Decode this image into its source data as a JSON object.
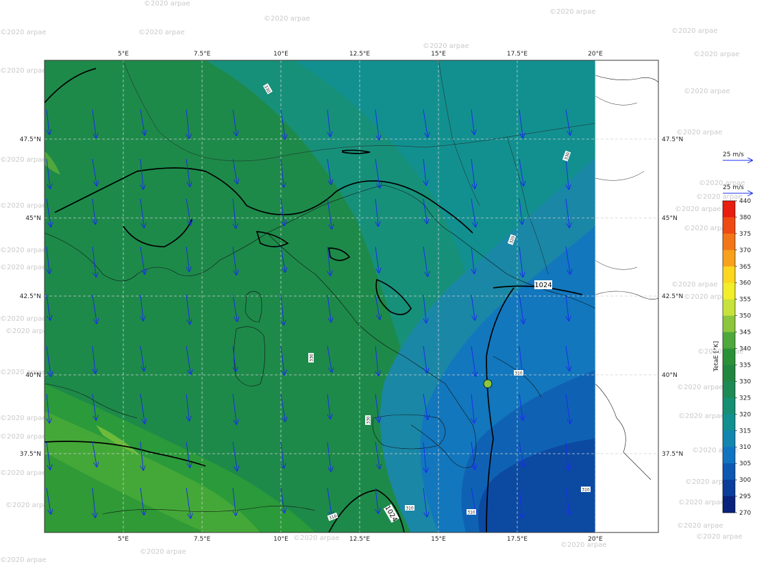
{
  "watermark": "©2020 arpae",
  "map": {
    "lon_labels": [
      "5°E",
      "7.5°E",
      "10°E",
      "12.5°E",
      "15°E",
      "17.5°E",
      "20°E"
    ],
    "lat_labels": [
      "47.5°N",
      "45°N",
      "42.5°N",
      "40°N",
      "37.5°N"
    ],
    "isobar_labels": [
      "1024",
      "1024"
    ],
    "contour_labels": [
      "330",
      "330",
      "320",
      "330",
      "330",
      "310",
      "310",
      "310",
      "310",
      "310"
    ]
  },
  "legend": {
    "wind_ref_1": "25 m/s",
    "wind_ref_2": "25 m/s",
    "colorbar_title": "TetaE  [°K]",
    "colorbar_ticks": [
      "440",
      "380",
      "375",
      "370",
      "365",
      "360",
      "355",
      "350",
      "345",
      "340",
      "335",
      "330",
      "325",
      "320",
      "315",
      "310",
      "305",
      "300",
      "295",
      "270"
    ],
    "colorbar_colors": [
      "#e81e10",
      "#ef4a14",
      "#f27618",
      "#f7a11c",
      "#fcd61f",
      "#f2ee2a",
      "#c7e23a",
      "#8cc63c",
      "#4fa83c",
      "#2b9137",
      "#21873f",
      "#1d8a55",
      "#168f72",
      "#129090",
      "#1386b0",
      "#1174c0",
      "#0d58b0",
      "#0b3d9a",
      "#09237c",
      "#0a0a5c"
    ]
  }
}
